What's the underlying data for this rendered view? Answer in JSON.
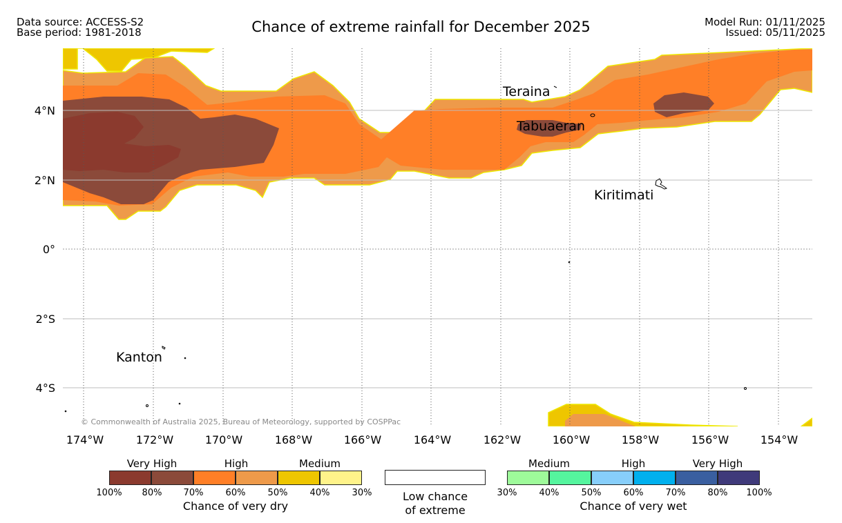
{
  "header": {
    "data_source": "Data source: ACCESS-S2",
    "base_period": "Base period: 1981-2018",
    "title": "Chance of extreme rainfall for December 2025",
    "model_run": "Model Run: 01/11/2025",
    "issued": "Issued: 05/11/2025"
  },
  "map": {
    "lat_ticks": [
      "4°N",
      "2°N",
      "0°",
      "2°S",
      "4°S"
    ],
    "lon_ticks": [
      "174°W",
      "172°W",
      "170°W",
      "168°W",
      "166°W",
      "164°W",
      "162°W",
      "160°W",
      "158°W",
      "156°W",
      "154°W"
    ],
    "places": [
      "Teraina",
      "Tabuaeran",
      "Kiritimati",
      "Kanton"
    ],
    "copyright": "© Commonwealth of Australia 2025, Bureau of Meteorology, supported by COSPPac",
    "colors": {
      "dry_very_high_dark": "#8B3A2E",
      "dry_very_high": "#8B4A3A",
      "dry_high_dark": "#FF7F27",
      "dry_high": "#EE9A4A",
      "dry_medium_dark": "#EEC600",
      "dry_medium": "#FFF38A",
      "outline": "#EEE800"
    }
  },
  "legend": {
    "dry": {
      "categories": [
        "Very High",
        "High",
        "Medium"
      ],
      "ticks": [
        "100%",
        "80%",
        "70%",
        "60%",
        "50%",
        "40%",
        "30%"
      ],
      "colors": [
        "#8B3A2E",
        "#8B4A3A",
        "#FF7F27",
        "#EE9A4A",
        "#EEC600",
        "#FFF38A"
      ],
      "label": "Chance of very dry"
    },
    "low": {
      "line1": "Low chance",
      "line2": "of extreme"
    },
    "wet": {
      "categories": [
        "Medium",
        "High",
        "Very High"
      ],
      "ticks": [
        "30%",
        "40%",
        "50%",
        "60%",
        "70%",
        "80%",
        "100%"
      ],
      "colors": [
        "#9EFA9A",
        "#55F59E",
        "#87CEFA",
        "#00B0EE",
        "#3A5FA0",
        "#3F3A7A"
      ],
      "label": "Chance of very wet"
    }
  }
}
